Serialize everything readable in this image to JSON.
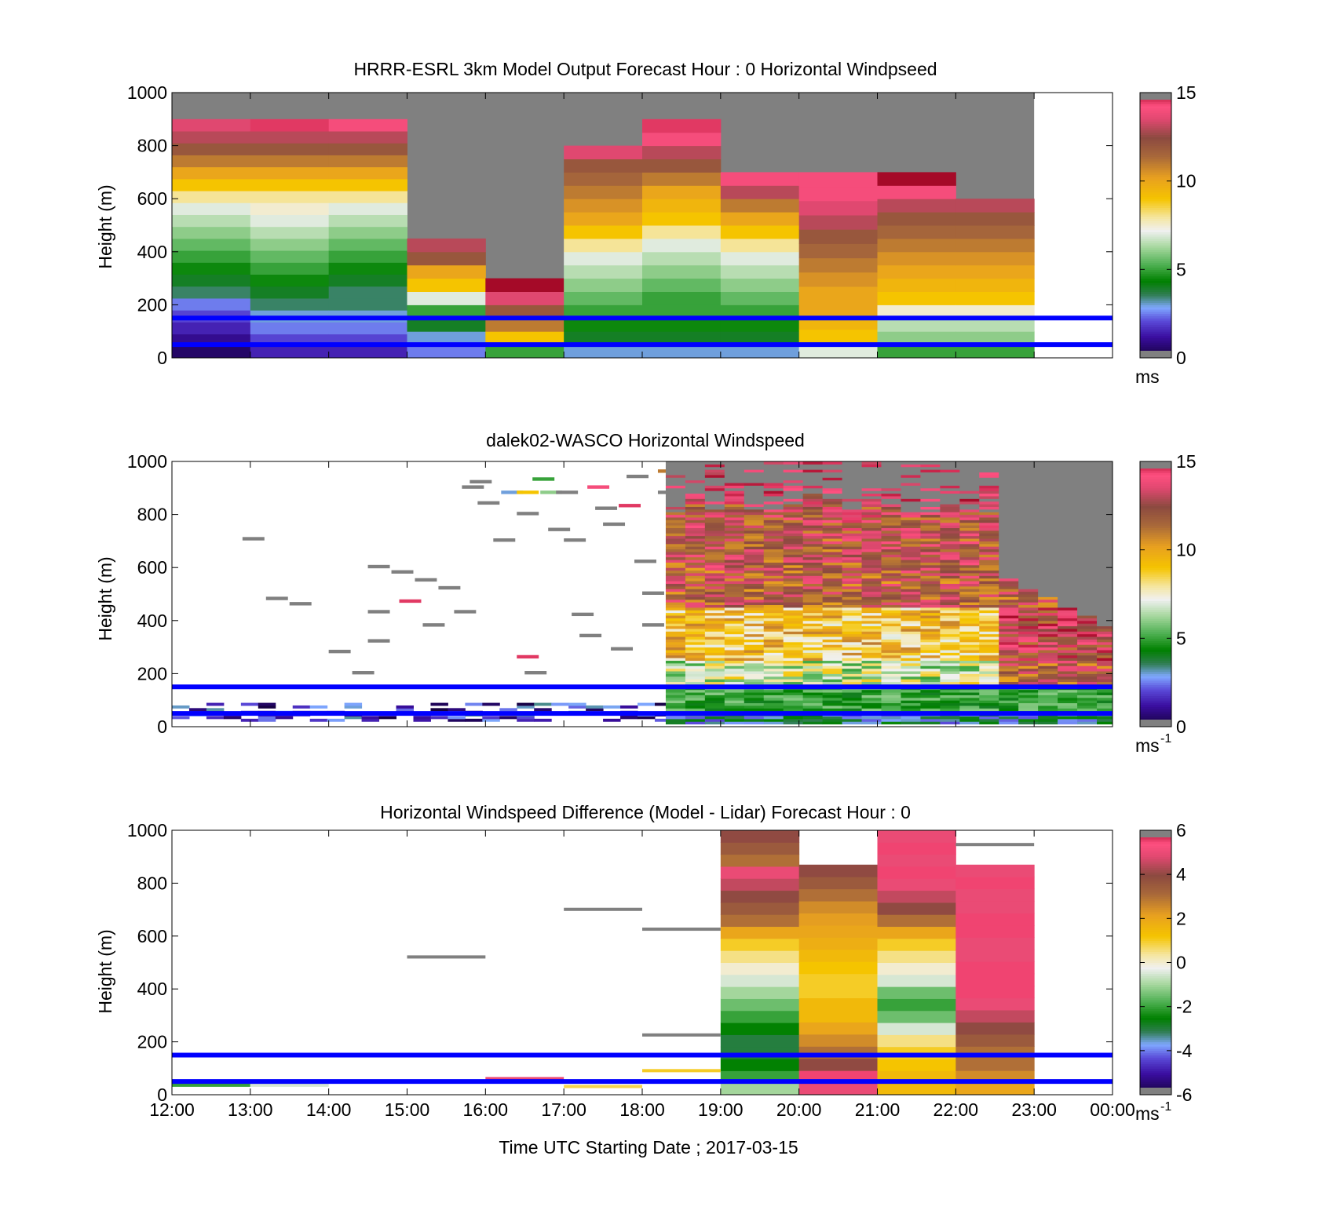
{
  "figure": {
    "xlabel": "Time UTC  Starting Date ; 2017-03-15",
    "xticks": [
      "12:00",
      "13:00",
      "14:00",
      "15:00",
      "16:00",
      "17:00",
      "18:00",
      "19:00",
      "20:00",
      "21:00",
      "22:00",
      "23:00",
      "00:00"
    ],
    "xlim": [
      12,
      24
    ],
    "reference_heights_m": [
      150,
      50
    ],
    "reference_line_color": "#0000ff",
    "missing_color": "#808080"
  },
  "colormap": {
    "stops": [
      [
        0.0,
        "#14003c"
      ],
      [
        0.08,
        "#3a0ea0"
      ],
      [
        0.14,
        "#5a4ad8"
      ],
      [
        0.19,
        "#7fa8ff"
      ],
      [
        0.24,
        "#2e7d4f"
      ],
      [
        0.29,
        "#008000"
      ],
      [
        0.35,
        "#4caf50"
      ],
      [
        0.42,
        "#a8d8a0"
      ],
      [
        0.48,
        "#f0f0f0"
      ],
      [
        0.53,
        "#f5e6a0"
      ],
      [
        0.6,
        "#f5c400"
      ],
      [
        0.68,
        "#e8a020"
      ],
      [
        0.76,
        "#a8683a"
      ],
      [
        0.83,
        "#8c4a40"
      ],
      [
        0.9,
        "#e04870"
      ],
      [
        0.95,
        "#ff5080"
      ],
      [
        1.0,
        "#a50a28"
      ]
    ]
  },
  "chart_data": [
    {
      "type": "heatmap",
      "title": "HRRR-ESRL 3km Model Output   Forecast Hour : 0 Horizontal Windpseed",
      "ylabel": "Height (m)",
      "xlabel": "",
      "ylim": [
        0,
        1000
      ],
      "yticks": [
        "0",
        "200",
        "400",
        "600",
        "800",
        "1000"
      ],
      "clim": [
        0,
        15
      ],
      "colorbar_ticks": [
        "0",
        "5",
        "10",
        "15"
      ],
      "colorbar_unit": "ms",
      "colorbar_unit_sup": "",
      "columns": [
        {
          "t0": 12,
          "t1": 13,
          "top": 900,
          "values": [
            0.5,
            1,
            1.5,
            2,
            2.5,
            3.5,
            4,
            4.5,
            5,
            5.5,
            6,
            6.5,
            7,
            8,
            9,
            10,
            11,
            12,
            13,
            13.5
          ]
        },
        {
          "t0": 13,
          "t1": 14,
          "top": 900,
          "values": [
            1.5,
            2,
            2.5,
            3,
            3.5,
            4,
            4.5,
            5,
            5.5,
            6,
            6.5,
            7,
            7.5,
            8,
            9,
            10,
            11,
            12,
            13,
            14.5
          ]
        },
        {
          "t0": 14,
          "t1": 15,
          "top": 900,
          "values": [
            1.5,
            2,
            2.5,
            3,
            3.5,
            3.5,
            4,
            4.5,
            5,
            5.5,
            6,
            6.5,
            7,
            8,
            9,
            10,
            11,
            12,
            13,
            14
          ]
        },
        {
          "t0": 15,
          "t1": 16,
          "top": 450,
          "values": [
            2.5,
            3,
            4,
            5,
            7,
            9,
            10,
            12,
            13
          ]
        },
        {
          "t0": 16,
          "t1": 17,
          "top": 300,
          "values": [
            5,
            9,
            11,
            12,
            13.5,
            15
          ]
        },
        {
          "t0": 17,
          "t1": 18,
          "top": 800,
          "values": [
            3,
            4,
            4.5,
            5,
            5.5,
            6,
            6.5,
            7,
            8,
            9,
            10,
            10.5,
            11,
            11.5,
            12,
            13.5
          ]
        },
        {
          "t0": 18,
          "t1": 19,
          "top": 900,
          "values": [
            3,
            4,
            4.5,
            5,
            5,
            5.5,
            6,
            6.5,
            7,
            8,
            9,
            9.5,
            10,
            11,
            12,
            13,
            14,
            14.5
          ]
        },
        {
          "t0": 19,
          "t1": 20,
          "top": 700,
          "values": [
            3,
            4,
            4.5,
            5,
            5.5,
            6,
            6.5,
            7,
            8,
            9,
            10,
            11,
            13,
            14
          ]
        },
        {
          "t0": 20,
          "t1": 21,
          "top": 700,
          "values": [
            7,
            9,
            9.5,
            10,
            10,
            10.5,
            11,
            11.5,
            12,
            13,
            13.5,
            14,
            14
          ]
        },
        {
          "t0": 21,
          "t1": 22,
          "top": 700,
          "values": [
            5,
            6,
            6.5,
            7.5,
            9,
            9.5,
            10,
            10.5,
            11,
            11.5,
            12,
            13,
            14,
            15
          ]
        },
        {
          "t0": 22,
          "t1": 23,
          "top": 600,
          "values": [
            5,
            6,
            6.5,
            7.5,
            9,
            9.5,
            10,
            10.5,
            11,
            11.5,
            12,
            13
          ]
        }
      ],
      "missing_above_to": 23
    },
    {
      "type": "heatmap",
      "title": "dalek02-WASCO  Horizontal Windspeed",
      "ylabel": "Height (m)",
      "xlabel": "",
      "ylim": [
        0,
        1000
      ],
      "yticks": [
        "0",
        "200",
        "400",
        "600",
        "800",
        "1000"
      ],
      "clim": [
        0,
        15
      ],
      "colorbar_ticks": [
        "0",
        "5",
        "10",
        "15"
      ],
      "colorbar_unit": "ms",
      "colorbar_unit_sup": "-1",
      "lidar_dense": {
        "t_start": 18.3,
        "t_end": 24,
        "step": 0.25
      },
      "sparse_marks": [
        {
          "t": 12.9,
          "z": 705,
          "v": -1
        },
        {
          "t": 13.2,
          "z": 480,
          "v": -1
        },
        {
          "t": 13.5,
          "z": 460,
          "v": -1
        },
        {
          "t": 14.0,
          "z": 280,
          "v": -1
        },
        {
          "t": 14.3,
          "z": 200,
          "v": -1
        },
        {
          "t": 14.5,
          "z": 600,
          "v": -1
        },
        {
          "t": 14.5,
          "z": 430,
          "v": -1
        },
        {
          "t": 14.5,
          "z": 320,
          "v": -1
        },
        {
          "t": 14.8,
          "z": 580,
          "v": -1
        },
        {
          "t": 14.9,
          "z": 470,
          "v": 14.5
        },
        {
          "t": 15.1,
          "z": 550,
          "v": -1
        },
        {
          "t": 15.2,
          "z": 380,
          "v": -1
        },
        {
          "t": 15.4,
          "z": 520,
          "v": -1
        },
        {
          "t": 15.6,
          "z": 430,
          "v": -1
        },
        {
          "t": 15.7,
          "z": 900,
          "v": -1
        },
        {
          "t": 15.8,
          "z": 920,
          "v": -1
        },
        {
          "t": 15.9,
          "z": 840,
          "v": -1
        },
        {
          "t": 16.2,
          "z": 880,
          "v": 3
        },
        {
          "t": 16.4,
          "z": 880,
          "v": 9
        },
        {
          "t": 16.4,
          "z": 800,
          "v": -1
        },
        {
          "t": 16.1,
          "z": 700,
          "v": -1
        },
        {
          "t": 16.4,
          "z": 260,
          "v": 14.5
        },
        {
          "t": 16.5,
          "z": 200,
          "v": -1
        },
        {
          "t": 16.6,
          "z": 930,
          "v": 5
        },
        {
          "t": 16.7,
          "z": 880,
          "v": 6
        },
        {
          "t": 16.9,
          "z": 880,
          "v": -1
        },
        {
          "t": 16.8,
          "z": 740,
          "v": -1
        },
        {
          "t": 17.0,
          "z": 700,
          "v": -1
        },
        {
          "t": 17.1,
          "z": 420,
          "v": -1
        },
        {
          "t": 17.2,
          "z": 340,
          "v": -1
        },
        {
          "t": 17.3,
          "z": 900,
          "v": 14
        },
        {
          "t": 17.4,
          "z": 820,
          "v": -1
        },
        {
          "t": 17.5,
          "z": 760,
          "v": -1
        },
        {
          "t": 17.6,
          "z": 290,
          "v": -1
        },
        {
          "t": 17.7,
          "z": 830,
          "v": 14.5
        },
        {
          "t": 17.8,
          "z": 940,
          "v": -1
        },
        {
          "t": 17.9,
          "z": 620,
          "v": -1
        },
        {
          "t": 18.0,
          "z": 500,
          "v": -1
        },
        {
          "t": 18.0,
          "z": 380,
          "v": -1
        },
        {
          "t": 18.2,
          "z": 880,
          "v": -1
        },
        {
          "t": 18.2,
          "z": 960,
          "v": 11
        }
      ],
      "near_ground_band": {
        "t0": 12,
        "t1": 18.3,
        "z0": 20,
        "z1": 90
      }
    },
    {
      "type": "heatmap",
      "title": "Horizontal Windspeed Difference (Model - Lidar) Forecast Hour : 0",
      "ylabel": "Height (m)",
      "xlabel": "Time UTC  Starting Date ; 2017-03-15",
      "ylim": [
        0,
        1000
      ],
      "yticks": [
        "0",
        "200",
        "400",
        "600",
        "800",
        "1000"
      ],
      "clim": [
        -6,
        6
      ],
      "colorbar_ticks": [
        "-6",
        "-4",
        "-2",
        "0",
        "2",
        "4",
        "6"
      ],
      "colorbar_unit": "ms",
      "colorbar_unit_sup": "-1",
      "columns": [
        {
          "t0": 19,
          "t1": 20,
          "top": 1000,
          "values": [
            -1,
            -2,
            -2.5,
            -3,
            -3,
            -2.5,
            -2,
            -1.5,
            -1,
            -0.5,
            0,
            0.5,
            1,
            2,
            3,
            3.5,
            4,
            4.5,
            5,
            3,
            3.5,
            4
          ]
        },
        {
          "t0": 20,
          "t1": 21,
          "top": 870,
          "values": [
            5,
            5.5,
            4,
            3,
            2.5,
            2,
            1.5,
            1.5,
            1,
            1,
            1.2,
            1.5,
            1.8,
            2,
            2.2,
            2.5,
            3,
            3.5,
            4
          ]
        },
        {
          "t0": 21,
          "t1": 22,
          "top": 1000,
          "values": [
            1.5,
            1.5,
            1.2,
            1,
            0.5,
            -0.5,
            -1.5,
            -2,
            -1.5,
            -0.5,
            0,
            0.5,
            1,
            2,
            3,
            4,
            4.5,
            5,
            5.5,
            5,
            5.5,
            5
          ]
        },
        {
          "t0": 22,
          "t1": 23,
          "top": 870,
          "values": [
            2,
            2.5,
            3,
            3,
            3.5,
            4,
            4.5,
            5,
            5.5,
            5.5,
            5.5,
            5,
            5,
            5.5,
            5.5,
            5,
            5,
            5.5,
            5
          ]
        }
      ],
      "gray_segments": [
        {
          "t0": 15,
          "t1": 16,
          "z": 515
        },
        {
          "t0": 17,
          "t1": 18,
          "z": 695
        },
        {
          "t0": 18,
          "t1": 19,
          "z": 620
        },
        {
          "t0": 18,
          "t1": 19,
          "z": 220
        },
        {
          "t0": 22,
          "t1": 23,
          "z": 940
        }
      ],
      "low_segments": [
        {
          "t0": 12,
          "t1": 13,
          "z": 30,
          "v": -2
        },
        {
          "t0": 13,
          "t1": 14,
          "z": 30,
          "v": -0.5
        },
        {
          "t0": 16,
          "t1": 17,
          "z": 55,
          "v": 5
        },
        {
          "t0": 17,
          "t1": 18,
          "z": 25,
          "v": 0.8
        },
        {
          "t0": 18,
          "t1": 19,
          "z": 85,
          "v": 1
        }
      ]
    }
  ]
}
